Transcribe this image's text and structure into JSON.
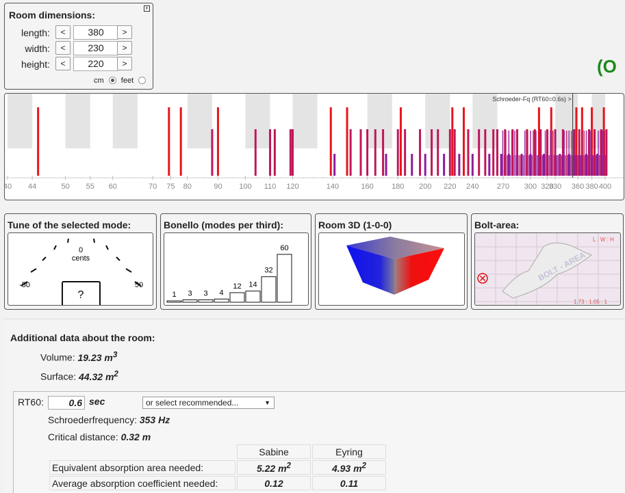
{
  "room_dimensions": {
    "title": "Room dimensions:",
    "expand_icon": "+",
    "length": {
      "label": "length:",
      "value": "380"
    },
    "width": {
      "label": "width:",
      "value": "230"
    },
    "height": {
      "label": "height:",
      "value": "220"
    },
    "dec_label": "<",
    "inc_label": ">",
    "unit_cm": "cm",
    "unit_feet": "feet",
    "selected_unit": "cm"
  },
  "loading_indicator": "(O",
  "spectrum": {
    "schroeder_label": "Schroeder-Fq (RT60=0.6s) >",
    "schroeder_hz": 353,
    "tick_labels": [
      "40",
      "44",
      "50",
      "55",
      "60",
      "70",
      "75",
      "80",
      "90",
      "100",
      "110",
      "120",
      "140",
      "160",
      "180",
      "200",
      "220",
      "240",
      "270",
      "300",
      "320",
      "330",
      "360",
      "380",
      "400"
    ],
    "colors": {
      "axial": "#e8141c",
      "tangential": "#c01658",
      "oblique": "#8e1a9c"
    }
  },
  "tune": {
    "title": "Tune of the selected mode:",
    "center_label": "0",
    "unit_label": "cents",
    "left_label": "-50",
    "right_label": "50",
    "value": "?"
  },
  "bonello": {
    "title": "Bonello (modes per third):",
    "values": [
      1,
      3,
      3,
      4,
      12,
      14,
      32,
      60
    ],
    "labels": [
      "1",
      "3",
      "3",
      "4",
      "12",
      "14",
      "32",
      "60"
    ]
  },
  "room3d": {
    "title": "Room 3D (1-0-0)",
    "colors": {
      "blue": "#1010ee",
      "red": "#ee1010"
    }
  },
  "bolt": {
    "title": "Bolt-area:",
    "ratio_header": "L : W : H",
    "ratio_value": "1.73 : 1.05 : 1",
    "watermark": "BOLT - AREA",
    "marker_icon": "x-circle-icon"
  },
  "additional": {
    "title": "Additional data about the room:",
    "volume_label": "Volume:",
    "volume_value": "19.23 m",
    "volume_sup": "3",
    "surface_label": "Surface:",
    "surface_value": "44.32 m",
    "surface_sup": "2",
    "rt60_label": "RT60:",
    "rt60_value": "0.6",
    "rt60_unit": "sec",
    "select_placeholder": "or select recommended...",
    "schroeder_label": "Schroederfrequency:",
    "schroeder_value": "353 Hz",
    "critical_label": "Critical distance:",
    "critical_value": "0.32 m",
    "col_sabine": "Sabine",
    "col_eyring": "Eyring",
    "row1_label": "Equivalent absorption area needed:",
    "row1_sabine": "5.22 m",
    "row1_eyring": "4.93 m",
    "row1_sup": "2",
    "row2_label": "Average absorption coefficient needed:",
    "row2_sabine": "0.12",
    "row2_eyring": "0.11"
  }
}
